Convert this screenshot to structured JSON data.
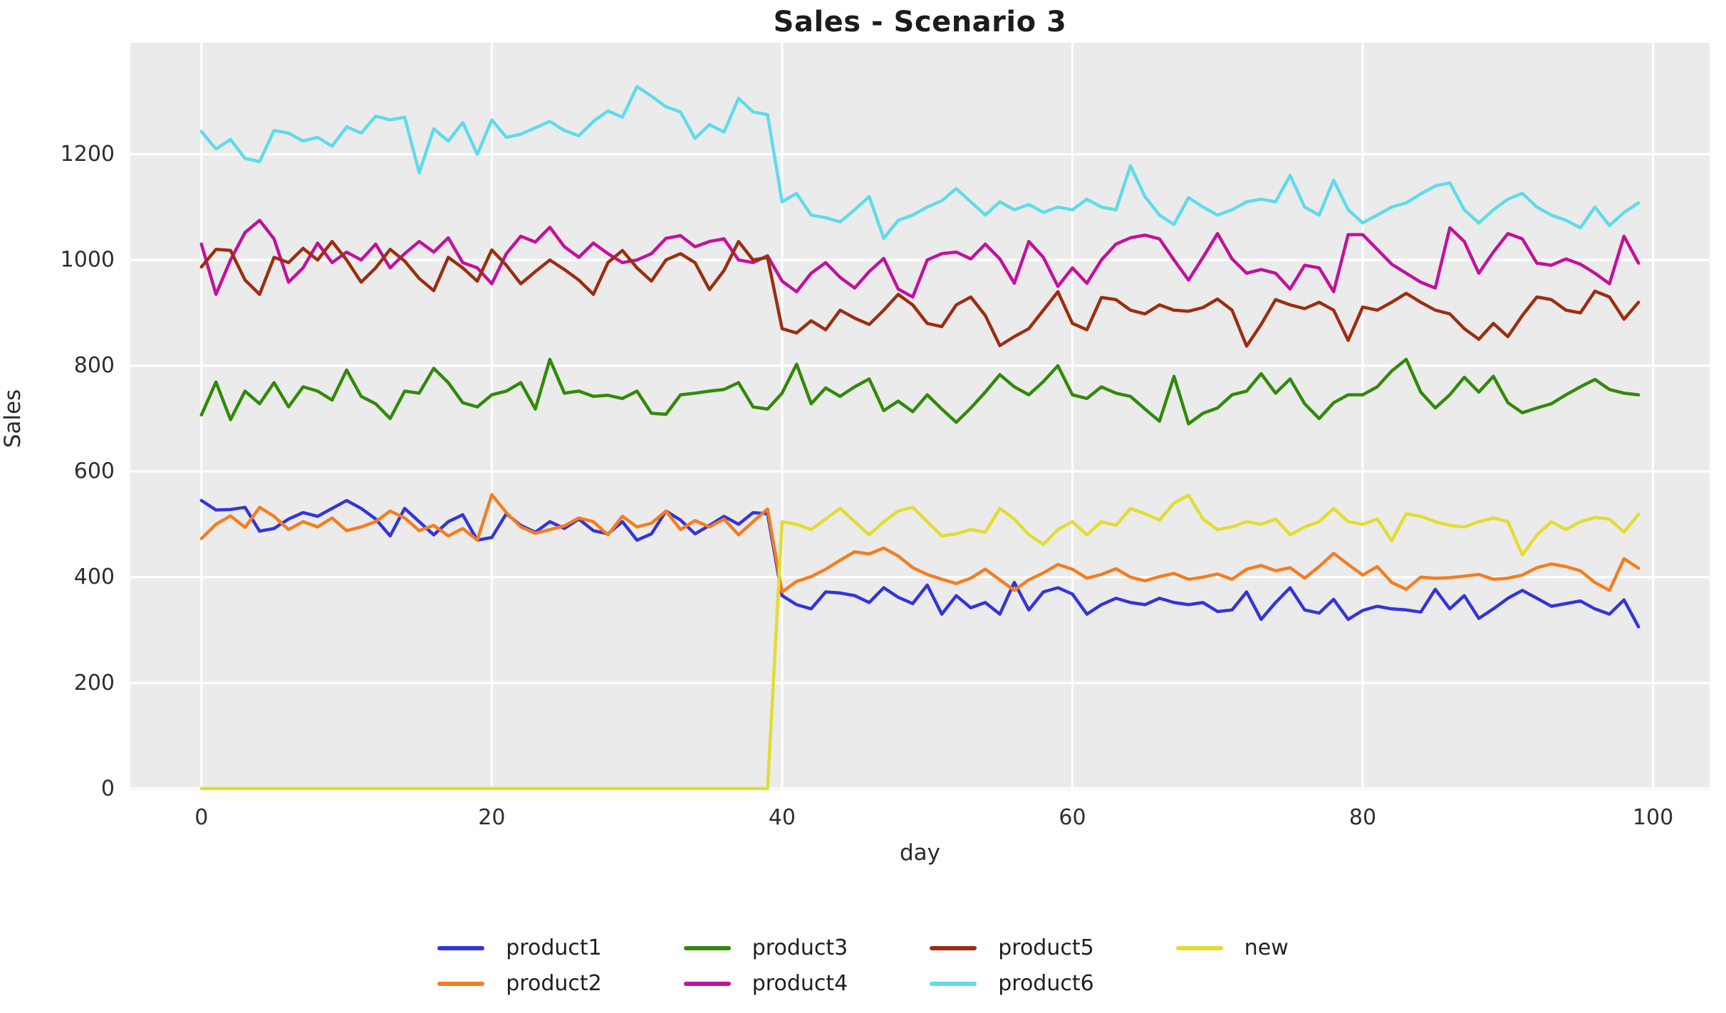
{
  "title": "Sales - Scenario 3",
  "chart_data": {
    "type": "line",
    "title": "Sales - Scenario 3",
    "xlabel": "day",
    "ylabel": "Sales",
    "x_ticks": [
      0,
      20,
      40,
      60,
      80,
      100
    ],
    "y_ticks": [
      0,
      200,
      400,
      600,
      800,
      1000,
      1200
    ],
    "xlim": [
      -4.9,
      103.9
    ],
    "ylim": [
      -3,
      1411
    ],
    "grid": true,
    "legend_position": "bottom",
    "plot_bg": "#ebebeb",
    "grid_color": "#ffffff",
    "text_color": "#2e2e2e",
    "x": [
      0,
      1,
      2,
      3,
      4,
      5,
      6,
      7,
      8,
      9,
      10,
      11,
      12,
      13,
      14,
      15,
      16,
      17,
      18,
      19,
      20,
      21,
      22,
      23,
      24,
      25,
      26,
      27,
      28,
      29,
      30,
      31,
      32,
      33,
      34,
      35,
      36,
      37,
      38,
      39,
      40,
      41,
      42,
      43,
      44,
      45,
      46,
      47,
      48,
      49,
      50,
      51,
      52,
      53,
      54,
      55,
      56,
      57,
      58,
      59,
      60,
      61,
      62,
      63,
      64,
      65,
      66,
      67,
      68,
      69,
      70,
      71,
      72,
      73,
      74,
      75,
      76,
      77,
      78,
      79,
      80,
      81,
      82,
      83,
      84,
      85,
      86,
      87,
      88,
      89,
      90,
      91,
      92,
      93,
      94,
      95,
      96,
      97,
      98,
      99
    ],
    "series": [
      {
        "name": "product1",
        "color": "#3434db",
        "values": [
          545,
          527,
          528,
          532,
          487,
          492,
          510,
          522,
          515,
          530,
          545,
          530,
          510,
          478,
          530,
          505,
          480,
          505,
          518,
          470,
          475,
          520,
          498,
          485,
          505,
          492,
          510,
          488,
          482,
          505,
          470,
          482,
          525,
          508,
          482,
          498,
          515,
          500,
          522,
          520,
          365,
          348,
          340,
          372,
          370,
          365,
          352,
          380,
          362,
          350,
          385,
          330,
          365,
          342,
          352,
          330,
          390,
          338,
          372,
          380,
          368,
          330,
          348,
          360,
          352,
          348,
          360,
          352,
          348,
          352,
          335,
          338,
          372,
          320,
          352,
          380,
          338,
          332,
          358,
          320,
          337,
          345,
          340,
          338,
          334,
          377,
          340,
          365,
          322,
          340,
          360,
          375,
          360,
          345,
          350,
          355,
          340,
          330,
          357,
          306
        ]
      },
      {
        "name": "product2",
        "color": "#f57d1f",
        "values": [
          473,
          500,
          516,
          494,
          532,
          515,
          490,
          505,
          495,
          512,
          488,
          495,
          505,
          525,
          512,
          488,
          498,
          478,
          492,
          470,
          556,
          522,
          495,
          483,
          490,
          497,
          512,
          505,
          480,
          515,
          495,
          502,
          525,
          490,
          507,
          495,
          510,
          480,
          505,
          529,
          372,
          392,
          401,
          415,
          432,
          448,
          444,
          455,
          440,
          418,
          405,
          396,
          388,
          398,
          415,
          395,
          375,
          395,
          408,
          424,
          415,
          398,
          405,
          416,
          400,
          393,
          401,
          407,
          396,
          400,
          406,
          396,
          415,
          422,
          412,
          418,
          398,
          420,
          445,
          424,
          404,
          420,
          390,
          377,
          400,
          398,
          399,
          402,
          405,
          396,
          398,
          404,
          418,
          425,
          420,
          412,
          390,
          375,
          435,
          417
        ]
      },
      {
        "name": "product3",
        "color": "#318a09",
        "values": [
          707,
          769,
          698,
          752,
          728,
          768,
          722,
          760,
          752,
          735,
          792,
          742,
          728,
          700,
          752,
          748,
          795,
          768,
          730,
          722,
          745,
          752,
          768,
          718,
          812,
          748,
          752,
          742,
          744,
          738,
          752,
          710,
          708,
          745,
          748,
          752,
          755,
          768,
          722,
          718,
          748,
          803,
          728,
          758,
          742,
          760,
          775,
          715,
          733,
          713,
          745,
          718,
          693,
          720,
          750,
          783,
          760,
          745,
          770,
          800,
          745,
          738,
          760,
          748,
          742,
          718,
          695,
          780,
          690,
          710,
          720,
          745,
          752,
          785,
          748,
          775,
          728,
          700,
          730,
          745,
          745,
          760,
          790,
          812,
          750,
          720,
          745,
          778,
          750,
          780,
          730,
          711,
          720,
          728,
          745,
          760,
          774,
          755,
          748,
          745
        ]
      },
      {
        "name": "product4",
        "color": "#c2119c",
        "values": [
          1030,
          935,
          1000,
          1052,
          1075,
          1040,
          958,
          985,
          1032,
          995,
          1015,
          1000,
          1030,
          985,
          1012,
          1035,
          1015,
          1042,
          995,
          985,
          955,
          1012,
          1045,
          1034,
          1062,
          1025,
          1005,
          1032,
          1012,
          995,
          1000,
          1012,
          1041,
          1046,
          1025,
          1035,
          1040,
          1000,
          995,
          1008,
          960,
          940,
          975,
          995,
          967,
          947,
          978,
          1003,
          945,
          930,
          1000,
          1012,
          1015,
          1002,
          1030,
          1002,
          956,
          1035,
          1005,
          950,
          985,
          956,
          1000,
          1030,
          1042,
          1047,
          1040,
          1000,
          962,
          1005,
          1050,
          1002,
          975,
          982,
          975,
          945,
          990,
          985,
          940,
          1048,
          1048,
          1020,
          992,
          975,
          958,
          947,
          1061,
          1035,
          975,
          1015,
          1050,
          1040,
          994,
          990,
          1002,
          992,
          975,
          955,
          1045,
          994
        ]
      },
      {
        "name": "product5",
        "color": "#9c2e0f",
        "values": [
          987,
          1020,
          1018,
          962,
          935,
          1005,
          995,
          1022,
          1000,
          1035,
          1000,
          958,
          985,
          1020,
          998,
          965,
          942,
          1005,
          985,
          960,
          1019,
          990,
          955,
          978,
          1000,
          982,
          962,
          935,
          995,
          1018,
          985,
          960,
          1000,
          1012,
          995,
          944,
          980,
          1035,
          1000,
          1005,
          870,
          862,
          885,
          868,
          905,
          890,
          878,
          905,
          935,
          915,
          880,
          874,
          915,
          930,
          895,
          838,
          855,
          870,
          905,
          940,
          880,
          868,
          929,
          925,
          905,
          898,
          915,
          905,
          903,
          910,
          926,
          905,
          837,
          878,
          925,
          915,
          908,
          920,
          905,
          848,
          911,
          905,
          920,
          937,
          920,
          905,
          898,
          870,
          850,
          880,
          855,
          895,
          930,
          925,
          905,
          900,
          941,
          930,
          888,
          920
        ]
      },
      {
        "name": "product6",
        "color": "#5fdbea",
        "values": [
          1243,
          1210,
          1228,
          1192,
          1186,
          1245,
          1240,
          1225,
          1232,
          1215,
          1252,
          1240,
          1272,
          1265,
          1270,
          1165,
          1248,
          1225,
          1260,
          1200,
          1265,
          1232,
          1238,
          1250,
          1262,
          1245,
          1235,
          1262,
          1282,
          1270,
          1328,
          1310,
          1290,
          1280,
          1230,
          1256,
          1242,
          1306,
          1280,
          1275,
          1110,
          1126,
          1085,
          1080,
          1072,
          1095,
          1120,
          1041,
          1075,
          1085,
          1100,
          1112,
          1135,
          1110,
          1085,
          1110,
          1095,
          1105,
          1090,
          1100,
          1095,
          1115,
          1100,
          1095,
          1178,
          1120,
          1085,
          1067,
          1118,
          1100,
          1085,
          1095,
          1110,
          1115,
          1110,
          1160,
          1100,
          1085,
          1151,
          1095,
          1070,
          1085,
          1100,
          1108,
          1125,
          1140,
          1146,
          1095,
          1070,
          1095,
          1115,
          1126,
          1100,
          1085,
          1075,
          1061,
          1100,
          1065,
          1090,
          1108
        ]
      },
      {
        "name": "new",
        "color": "#e2dc32",
        "values": [
          0,
          0,
          0,
          0,
          0,
          0,
          0,
          0,
          0,
          0,
          0,
          0,
          0,
          0,
          0,
          0,
          0,
          0,
          0,
          0,
          0,
          0,
          0,
          0,
          0,
          0,
          0,
          0,
          0,
          0,
          0,
          0,
          0,
          0,
          0,
          0,
          0,
          0,
          0,
          0,
          505,
          500,
          490,
          510,
          530,
          505,
          480,
          505,
          525,
          532,
          505,
          478,
          482,
          490,
          485,
          530,
          510,
          480,
          462,
          490,
          505,
          480,
          505,
          498,
          530,
          520,
          508,
          540,
          555,
          510,
          490,
          495,
          505,
          500,
          510,
          480,
          495,
          505,
          530,
          505,
          500,
          510,
          469,
          520,
          515,
          505,
          498,
          495,
          505,
          512,
          505,
          442,
          480,
          505,
          490,
          505,
          513,
          510,
          485,
          519
        ]
      }
    ],
    "legend_columns": [
      [
        "product1",
        "product2"
      ],
      [
        "product3",
        "product4"
      ],
      [
        "product5",
        "product6"
      ],
      [
        "new"
      ]
    ]
  }
}
